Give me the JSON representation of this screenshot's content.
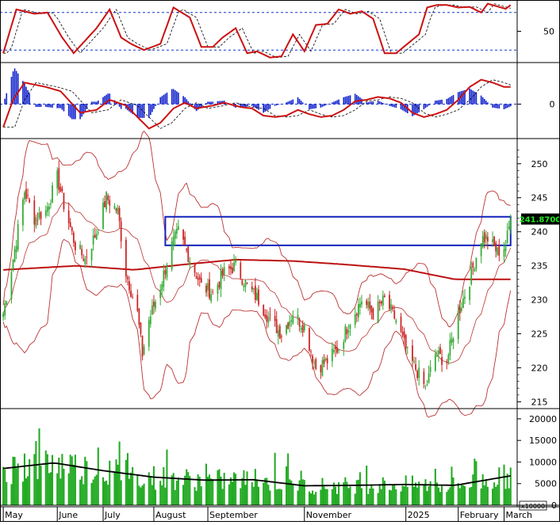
{
  "chart_data": {
    "type": "candlestick",
    "period": "2024-05 .. 2025-03 (daily)",
    "months": [
      "May",
      "June",
      "July",
      "August",
      "September",
      "November",
      "2025",
      "February",
      "March"
    ],
    "price_axis": {
      "ticks": [
        215,
        220,
        225,
        230,
        235,
        240,
        245,
        250
      ],
      "range": [
        214,
        253
      ]
    },
    "last_price_label": "241.8700",
    "volume_axis": {
      "ticks": [
        0,
        5000,
        10000,
        15000,
        20000
      ],
      "range": [
        0,
        22000
      ],
      "multiplier_label": "x10000"
    },
    "stoch_axis": {
      "ticks": [
        50
      ],
      "range": [
        0,
        100
      ],
      "levels": [
        20,
        80
      ]
    },
    "macd_axis": {
      "ticks": [
        0
      ]
    },
    "resistance_box": {
      "from_date": "2024-08-08",
      "to_date": "2025-03-07",
      "low": 238.0,
      "high": 242.2
    },
    "price_keypoints": [
      [
        "2024-05-01",
        228
      ],
      [
        "2024-05-07",
        236
      ],
      [
        "2024-05-14",
        246
      ],
      [
        "2024-05-20",
        242
      ],
      [
        "2024-05-27",
        243
      ],
      [
        "2024-06-03",
        248
      ],
      [
        "2024-06-07",
        244
      ],
      [
        "2024-06-14",
        238
      ],
      [
        "2024-06-20",
        236
      ],
      [
        "2024-06-27",
        240
      ],
      [
        "2024-07-03",
        245
      ],
      [
        "2024-07-10",
        243
      ],
      [
        "2024-07-15",
        234
      ],
      [
        "2024-07-22",
        228
      ],
      [
        "2024-07-25",
        222
      ],
      [
        "2024-07-29",
        227
      ],
      [
        "2024-08-05",
        232
      ],
      [
        "2024-08-12",
        238
      ],
      [
        "2024-08-16",
        240
      ],
      [
        "2024-08-23",
        236
      ],
      [
        "2024-08-30",
        232
      ],
      [
        "2024-09-06",
        231
      ],
      [
        "2024-09-13",
        234
      ],
      [
        "2024-09-20",
        235
      ],
      [
        "2024-09-27",
        232
      ],
      [
        "2024-10-04",
        230
      ],
      [
        "2024-10-11",
        227
      ],
      [
        "2024-10-18",
        225
      ],
      [
        "2024-10-25",
        228
      ],
      [
        "2024-11-01",
        226
      ],
      [
        "2024-11-08",
        220
      ],
      [
        "2024-11-15",
        221
      ],
      [
        "2024-11-22",
        223
      ],
      [
        "2024-11-29",
        227
      ],
      [
        "2024-12-06",
        230
      ],
      [
        "2024-12-13",
        228
      ],
      [
        "2024-12-20",
        230
      ],
      [
        "2024-12-27",
        227
      ],
      [
        "2025-01-03",
        222
      ],
      [
        "2025-01-10",
        219
      ],
      [
        "2025-01-14",
        217
      ],
      [
        "2025-01-20",
        222
      ],
      [
        "2025-01-27",
        221
      ],
      [
        "2025-02-03",
        228
      ],
      [
        "2025-02-10",
        233
      ],
      [
        "2025-02-17",
        239
      ],
      [
        "2025-02-21",
        239
      ],
      [
        "2025-02-27",
        237
      ],
      [
        "2025-03-04",
        238
      ],
      [
        "2025-03-07",
        241.87
      ]
    ],
    "ma_long_keypoints": [
      [
        "2024-05-01",
        234.4
      ],
      [
        "2024-06-15",
        235.0
      ],
      [
        "2024-07-20",
        234.4
      ],
      [
        "2024-08-20",
        235.2
      ],
      [
        "2024-09-20",
        235.9
      ],
      [
        "2024-10-25",
        235.7
      ],
      [
        "2024-11-25",
        235.2
      ],
      [
        "2025-01-01",
        234.5
      ],
      [
        "2025-02-01",
        233.0
      ],
      [
        "2025-03-07",
        233.0
      ]
    ],
    "volume_ma_keypoints": [
      [
        "2024-05-01",
        8500
      ],
      [
        "2024-06-01",
        9800
      ],
      [
        "2024-07-01",
        8000
      ],
      [
        "2024-08-01",
        6500
      ],
      [
        "2024-09-01",
        5800
      ],
      [
        "2024-10-01",
        5900
      ],
      [
        "2024-11-01",
        4500
      ],
      [
        "2024-12-01",
        4600
      ],
      [
        "2025-01-01",
        4800
      ],
      [
        "2025-02-01",
        4600
      ],
      [
        "2025-03-07",
        6800
      ]
    ],
    "stoch_k_keypoints": [
      [
        "2024-05-01",
        15
      ],
      [
        "2024-05-09",
        85
      ],
      [
        "2024-05-20",
        78
      ],
      [
        "2024-05-28",
        80
      ],
      [
        "2024-06-06",
        40
      ],
      [
        "2024-06-13",
        15
      ],
      [
        "2024-06-27",
        55
      ],
      [
        "2024-07-05",
        85
      ],
      [
        "2024-07-12",
        40
      ],
      [
        "2024-07-18",
        30
      ],
      [
        "2024-07-26",
        20
      ],
      [
        "2024-08-05",
        30
      ],
      [
        "2024-08-13",
        88
      ],
      [
        "2024-08-23",
        72
      ],
      [
        "2024-08-30",
        25
      ],
      [
        "2024-09-06",
        25
      ],
      [
        "2024-09-12",
        40
      ],
      [
        "2024-09-20",
        55
      ],
      [
        "2024-09-27",
        15
      ],
      [
        "2024-10-03",
        18
      ],
      [
        "2024-10-11",
        8
      ],
      [
        "2024-10-18",
        10
      ],
      [
        "2024-10-25",
        45
      ],
      [
        "2024-11-01",
        18
      ],
      [
        "2024-11-08",
        60
      ],
      [
        "2024-11-15",
        62
      ],
      [
        "2024-11-22",
        85
      ],
      [
        "2024-11-29",
        78
      ],
      [
        "2024-12-06",
        82
      ],
      [
        "2024-12-13",
        70
      ],
      [
        "2024-12-20",
        15
      ],
      [
        "2024-12-27",
        15
      ],
      [
        "2025-01-03",
        30
      ],
      [
        "2025-01-10",
        45
      ],
      [
        "2025-01-15",
        88
      ],
      [
        "2025-01-21",
        92
      ],
      [
        "2025-01-27",
        92
      ],
      [
        "2025-02-03",
        88
      ],
      [
        "2025-02-10",
        89
      ],
      [
        "2025-02-17",
        80
      ],
      [
        "2025-02-21",
        94
      ],
      [
        "2025-03-04",
        86
      ],
      [
        "2025-03-07",
        92
      ]
    ],
    "macd_keypoints": [
      [
        "2024-05-01",
        -1.6
      ],
      [
        "2024-05-07",
        0.3
      ],
      [
        "2024-05-14",
        1.5
      ],
      [
        "2024-05-27",
        1.2
      ],
      [
        "2024-06-05",
        0.9
      ],
      [
        "2024-06-17",
        -0.6
      ],
      [
        "2024-06-27",
        -0.4
      ],
      [
        "2024-07-05",
        0.3
      ],
      [
        "2024-07-15",
        -0.1
      ],
      [
        "2024-07-22",
        -0.9
      ],
      [
        "2024-07-29",
        -1.7
      ],
      [
        "2024-08-05",
        -1.3
      ],
      [
        "2024-08-13",
        -0.3
      ],
      [
        "2024-08-20",
        0.1
      ],
      [
        "2024-08-27",
        -0.3
      ],
      [
        "2024-09-06",
        -0.1
      ],
      [
        "2024-09-13",
        0.1
      ],
      [
        "2024-09-23",
        -0.2
      ],
      [
        "2024-09-30",
        -0.3
      ],
      [
        "2024-10-07",
        -0.8
      ],
      [
        "2024-10-14",
        -0.9
      ],
      [
        "2024-10-21",
        -0.8
      ],
      [
        "2024-10-28",
        -0.4
      ],
      [
        "2024-11-04",
        -0.7
      ],
      [
        "2024-11-11",
        -0.9
      ],
      [
        "2024-11-18",
        -0.8
      ],
      [
        "2024-11-25",
        -0.4
      ],
      [
        "2024-12-02",
        0.2
      ],
      [
        "2024-12-09",
        0.3
      ],
      [
        "2024-12-16",
        0.5
      ],
      [
        "2024-12-23",
        0.4
      ],
      [
        "2024-12-30",
        0.1
      ],
      [
        "2025-01-06",
        -0.6
      ],
      [
        "2025-01-13",
        -0.9
      ],
      [
        "2025-01-20",
        -0.7
      ],
      [
        "2025-01-27",
        -0.4
      ],
      [
        "2025-02-03",
        0.3
      ],
      [
        "2025-02-10",
        1.2
      ],
      [
        "2025-02-17",
        1.7
      ],
      [
        "2025-02-24",
        1.5
      ],
      [
        "2025-03-03",
        1.2
      ],
      [
        "2025-03-07",
        1.2
      ]
    ],
    "colors": {
      "up": "#33aa33",
      "down": "#cc2222",
      "indicator_line": "#cc1111",
      "ma_long": "#bb1111",
      "band": "#bb3333",
      "volume_bar": "#22aa22",
      "volume_ma": "#000000",
      "hist": "#1122cc",
      "resistance_box": "#1122bb",
      "guide": "#1133cc",
      "frame": "#000000"
    }
  }
}
